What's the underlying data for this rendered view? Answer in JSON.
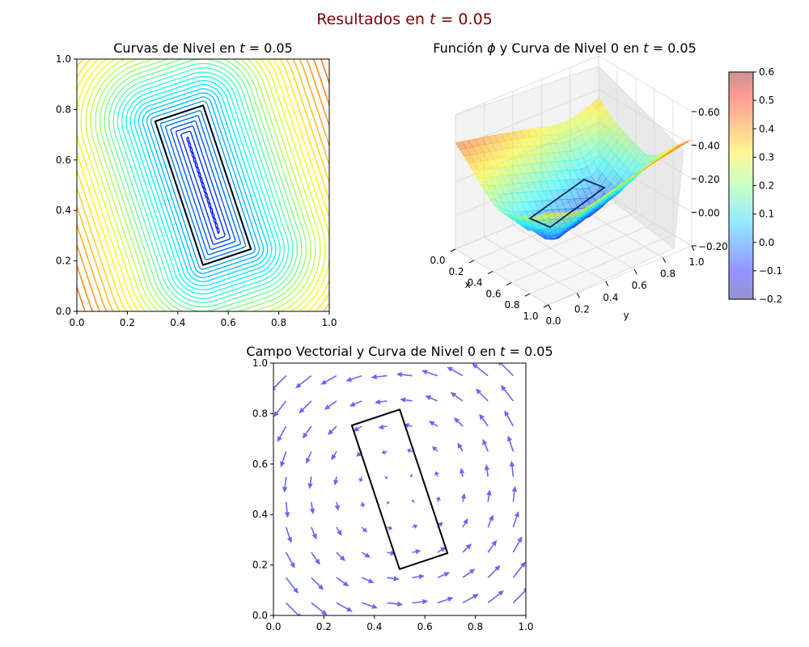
{
  "figure": {
    "suptitle_prefix": "Resultados en ",
    "suptitle_var": "t",
    "suptitle_suffix": " = 0.05",
    "suptitle_color": "#800000"
  },
  "chart_data": [
    {
      "type": "contour",
      "title_prefix": "Curvas de Nivel en ",
      "title_var": "t",
      "title_suffix": " = 0.05",
      "xlim": [
        0,
        1
      ],
      "ylim": [
        0,
        1
      ],
      "xticks": [
        "0.0",
        "0.2",
        "0.4",
        "0.6",
        "0.8",
        "1.0"
      ],
      "yticks": [
        "0.0",
        "0.2",
        "0.4",
        "0.6",
        "0.8",
        "1.0"
      ],
      "colormap": "jet",
      "level_range": [
        -0.2,
        0.6
      ],
      "zero_level_color": "#000000",
      "zero_level_rectangle": {
        "center": [
          0.5,
          0.5
        ],
        "width": 0.2,
        "height": 0.6,
        "angle_deg": 18.4
      }
    },
    {
      "type": "surface3d",
      "title_prefix": "Función ",
      "title_var": "ϕ",
      "title_suffix": " y Curva de Nivel 0 en ",
      "title_var2": "t",
      "title_suffix2": " = 0.05",
      "xlabel": "x",
      "ylabel": "y",
      "xticks": [
        "0.0",
        "0.2",
        "0.4",
        "0.6",
        "0.8",
        "1.0"
      ],
      "yticks": [
        "0.0",
        "0.2",
        "0.4",
        "0.6",
        "0.8",
        "1.0"
      ],
      "zticks": [
        "−0.20",
        "0.00",
        "0.20",
        "0.40",
        "0.60"
      ],
      "zlim": [
        -0.2,
        0.6
      ],
      "colormap": "jet",
      "alpha": 0.4,
      "colorbar": {
        "min": -0.2,
        "max": 0.6,
        "ticks": [
          "−0.2",
          "−0.1",
          "0.0",
          "0.1",
          "0.2",
          "0.3",
          "0.4",
          "0.5",
          "0.6"
        ]
      }
    },
    {
      "type": "quiver",
      "title_prefix": "Campo Vectorial y Curva de Nivel 0 en ",
      "title_var": "t",
      "title_suffix": " = 0.05",
      "xlim": [
        0,
        1
      ],
      "ylim": [
        0,
        1
      ],
      "xticks": [
        "0.0",
        "0.2",
        "0.4",
        "0.6",
        "0.8",
        "1.0"
      ],
      "yticks": [
        "0.0",
        "0.2",
        "0.4",
        "0.6",
        "0.8",
        "1.0"
      ],
      "arrow_color": "#6666ff",
      "grid_n": 10,
      "field": "rotation about (0.5, 0.5), counter-clockwise",
      "zero_level_color": "#000000"
    }
  ]
}
